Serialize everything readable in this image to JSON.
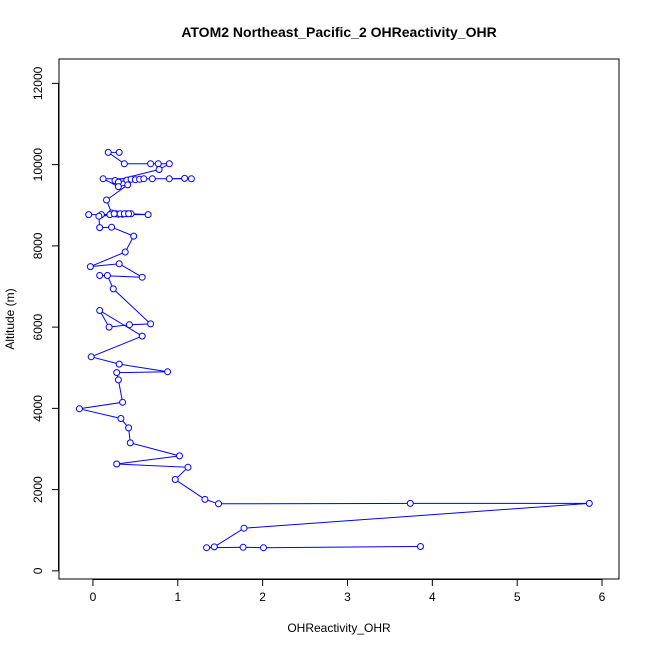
{
  "chart_data": {
    "type": "line",
    "title": "ATOM2 Northeast_Pacific_2 OHReactivity_OHR",
    "xlabel": "OHReactivity_OHR",
    "ylabel": "Altitude (m)",
    "xlim": [
      -0.4,
      6.2
    ],
    "ylim": [
      -200,
      12600
    ],
    "x_ticks": [
      0,
      1,
      2,
      3,
      4,
      5,
      6
    ],
    "y_ticks": [
      0,
      2000,
      4000,
      6000,
      8000,
      10000,
      12000
    ],
    "grid": false,
    "legend": "none",
    "marker": "open-circle",
    "series": [
      {
        "color": "#0000ff",
        "points": [
          [
            0.31,
            10300
          ],
          [
            0.18,
            10300
          ],
          [
            0.37,
            10020
          ],
          [
            0.68,
            10020
          ],
          [
            0.77,
            10020
          ],
          [
            0.9,
            10020
          ],
          [
            0.78,
            9880
          ],
          [
            0.26,
            9610
          ],
          [
            0.3,
            9570
          ],
          [
            0.4,
            9620
          ],
          [
            0.45,
            9640
          ],
          [
            0.5,
            9630
          ],
          [
            0.55,
            9640
          ],
          [
            0.6,
            9650
          ],
          [
            0.7,
            9650
          ],
          [
            0.9,
            9650
          ],
          [
            1.08,
            9660
          ],
          [
            1.16,
            9650
          ],
          [
            0.12,
            9650
          ],
          [
            0.3,
            9460
          ],
          [
            0.41,
            9500
          ],
          [
            0.16,
            9130
          ],
          [
            0.22,
            8810
          ],
          [
            0.27,
            8790
          ],
          [
            0.3,
            8780
          ],
          [
            0.35,
            8780
          ],
          [
            0.4,
            8790
          ],
          [
            0.45,
            8790
          ],
          [
            0.65,
            8770
          ],
          [
            -0.05,
            8770
          ],
          [
            0.1,
            8770
          ],
          [
            0.2,
            8770
          ],
          [
            0.25,
            8790
          ],
          [
            0.32,
            8790
          ],
          [
            0.37,
            8790
          ],
          [
            0.42,
            8790
          ],
          [
            0.07,
            8730
          ],
          [
            0.08,
            8450
          ],
          [
            0.22,
            8460
          ],
          [
            0.48,
            8240
          ],
          [
            0.38,
            7850
          ],
          [
            -0.03,
            7490
          ],
          [
            0.31,
            7560
          ],
          [
            0.58,
            7230
          ],
          [
            0.08,
            7270
          ],
          [
            0.17,
            7270
          ],
          [
            0.24,
            6940
          ],
          [
            0.68,
            6080
          ],
          [
            0.43,
            6060
          ],
          [
            0.19,
            6000
          ],
          [
            0.08,
            6410
          ],
          [
            0.58,
            5780
          ],
          [
            -0.02,
            5270
          ],
          [
            0.31,
            5090
          ],
          [
            0.88,
            4900
          ],
          [
            0.28,
            4880
          ],
          [
            0.3,
            4700
          ],
          [
            0.35,
            4150
          ],
          [
            -0.16,
            3990
          ],
          [
            0.33,
            3750
          ],
          [
            0.42,
            3520
          ],
          [
            0.44,
            3150
          ],
          [
            1.02,
            2830
          ],
          [
            0.28,
            2630
          ],
          [
            1.12,
            2550
          ],
          [
            0.97,
            2250
          ],
          [
            1.32,
            1760
          ],
          [
            1.48,
            1650
          ],
          [
            3.74,
            1660
          ],
          [
            5.85,
            1660
          ],
          [
            1.78,
            1050
          ],
          [
            1.43,
            590
          ],
          [
            1.34,
            570
          ],
          [
            1.77,
            580
          ],
          [
            2.01,
            570
          ],
          [
            3.86,
            600
          ]
        ]
      }
    ]
  }
}
